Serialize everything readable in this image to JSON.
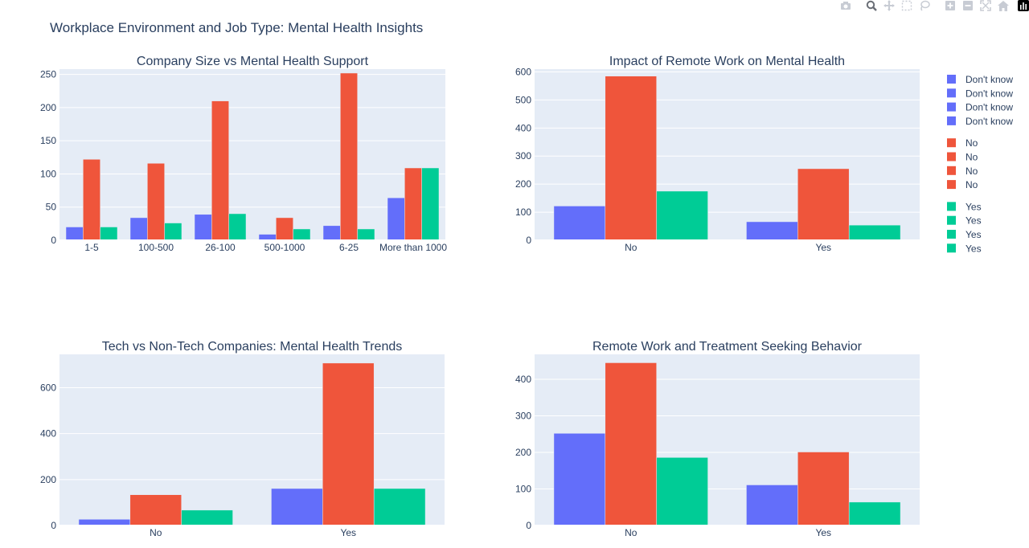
{
  "title": "Workplace Environment and Job Type: Mental Health Insights",
  "colors": {
    "blue": "#636efa",
    "red": "#ef553b",
    "green": "#00cc96",
    "plot_bg": "#e5ecf6",
    "grid": "#ffffff",
    "text": "#2a3f5f"
  },
  "modebar": [
    {
      "icon": "camera-icon"
    },
    {
      "icon": "zoom-icon"
    },
    {
      "icon": "pan-icon"
    },
    {
      "icon": "box-select-icon"
    },
    {
      "icon": "lasso-select-icon"
    },
    {
      "icon": "zoom-in-icon"
    },
    {
      "icon": "zoom-out-icon"
    },
    {
      "icon": "autoscale-icon"
    },
    {
      "icon": "reset-axes-icon"
    },
    {
      "icon": "plotly-logo-icon"
    }
  ],
  "legend": {
    "groups": [
      {
        "label": "Don't know",
        "color": "#636efa",
        "count": 4
      },
      {
        "label": "No",
        "color": "#ef553b",
        "count": 4
      },
      {
        "label": "Yes",
        "color": "#00cc96",
        "count": 4
      }
    ]
  },
  "chart_data": [
    {
      "type": "bar",
      "title": "Company Size vs Mental Health Support",
      "categories": [
        "1-5",
        "100-500",
        "26-100",
        "500-1000",
        "6-25",
        "More than 1000"
      ],
      "series": [
        {
          "name": "Don't know",
          "values": [
            20,
            34,
            39,
            9,
            22,
            64
          ]
        },
        {
          "name": "No",
          "values": [
            122,
            116,
            210,
            34,
            252,
            109
          ]
        },
        {
          "name": "Yes",
          "values": [
            20,
            26,
            40,
            17,
            17,
            109
          ]
        }
      ],
      "ylim": [
        0,
        258
      ],
      "yticks": [
        0,
        50,
        100,
        150,
        200,
        250
      ]
    },
    {
      "type": "bar",
      "title": "Impact of Remote Work on Mental Health",
      "categories": [
        "No",
        "Yes"
      ],
      "series": [
        {
          "name": "Don't know",
          "values": [
            122,
            66
          ]
        },
        {
          "name": "No",
          "values": [
            585,
            255
          ]
        },
        {
          "name": "Yes",
          "values": [
            175,
            54
          ]
        }
      ],
      "ylim": [
        0,
        610
      ],
      "yticks": [
        0,
        100,
        200,
        300,
        400,
        500,
        600
      ]
    },
    {
      "type": "bar",
      "title": "Tech vs Non-Tech Companies: Mental Health Trends",
      "categories": [
        "No",
        "Yes"
      ],
      "series": [
        {
          "name": "Don't know",
          "values": [
            27,
            161
          ]
        },
        {
          "name": "No",
          "values": [
            134,
            707
          ]
        },
        {
          "name": "Yes",
          "values": [
            67,
            161
          ]
        }
      ],
      "ylim": [
        0,
        745
      ],
      "yticks": [
        0,
        200,
        400,
        600
      ]
    },
    {
      "type": "bar",
      "title": "Remote Work and Treatment Seeking Behavior",
      "categories": [
        "No",
        "Yes"
      ],
      "series": [
        {
          "name": "Don't know",
          "values": [
            252,
            111
          ]
        },
        {
          "name": "No",
          "values": [
            445,
            201
          ]
        },
        {
          "name": "Yes",
          "values": [
            186,
            64
          ]
        }
      ],
      "ylim": [
        0,
        468
      ],
      "yticks": [
        0,
        100,
        200,
        300,
        400
      ]
    }
  ]
}
